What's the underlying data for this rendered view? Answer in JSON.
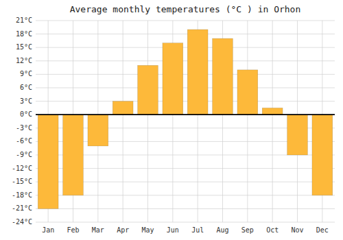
{
  "chart_data": {
    "type": "bar",
    "title": "Average monthly temperatures (°C ) in Orhon",
    "categories": [
      "Jan",
      "Feb",
      "Mar",
      "Apr",
      "May",
      "Jun",
      "Jul",
      "Aug",
      "Sep",
      "Oct",
      "Nov",
      "Dec"
    ],
    "values": [
      -21,
      -18,
      -7,
      3,
      11,
      16,
      19,
      17,
      10,
      1.5,
      -9,
      -18
    ],
    "color": "#FDB93A",
    "ylim": [
      -24,
      21
    ],
    "yticks": [
      {
        "value": -24,
        "label": "-24°C"
      },
      {
        "value": -21,
        "label": "-21°C"
      },
      {
        "value": -18,
        "label": "-18°C"
      },
      {
        "value": -15,
        "label": "-15°C"
      },
      {
        "value": -12,
        "label": "-12°C"
      },
      {
        "value": -9,
        "label": "-9°C"
      },
      {
        "value": -6,
        "label": "-6°C"
      },
      {
        "value": -3,
        "label": "-3°C"
      },
      {
        "value": 0,
        "label": "0°C"
      },
      {
        "value": 3,
        "label": "3°C"
      },
      {
        "value": 6,
        "label": "6°C"
      },
      {
        "value": 9,
        "label": "9°C"
      },
      {
        "value": 12,
        "label": "12°C"
      },
      {
        "value": 15,
        "label": "15°C"
      },
      {
        "value": 18,
        "label": "18°C"
      },
      {
        "value": 21,
        "label": "21°C"
      }
    ],
    "grid": true
  }
}
